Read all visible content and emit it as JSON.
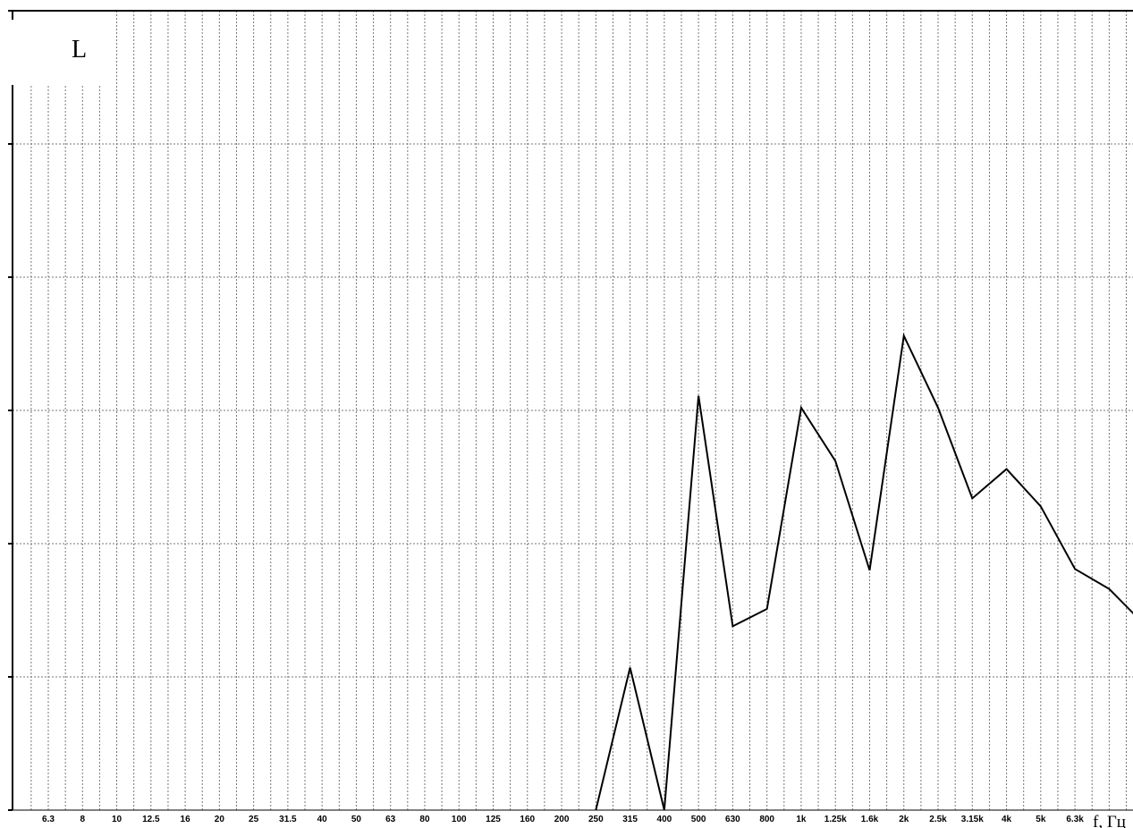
{
  "chart_data": {
    "type": "line",
    "y_label": "L",
    "x_label": "f, Гц",
    "categories": [
      "6.3",
      "8",
      "10",
      "12.5",
      "16",
      "20",
      "25",
      "31.5",
      "40",
      "50",
      "63",
      "80",
      "100",
      "125",
      "160",
      "200",
      "250",
      "315",
      "400",
      "500",
      "630",
      "800",
      "1k",
      "1.25k",
      "1.6k",
      "2k",
      "2.5k",
      "3.15k",
      "4k",
      "5k",
      "6.3k",
      null,
      null
    ],
    "series": [
      {
        "name": "L",
        "color": "#000000",
        "values": [
          null,
          null,
          null,
          null,
          null,
          null,
          null,
          null,
          null,
          null,
          null,
          null,
          null,
          null,
          null,
          null,
          0,
          10.7,
          0,
          31.1,
          13.8,
          15.1,
          30.2,
          26.2,
          18.0,
          35.6,
          30.2,
          23.4,
          25.6,
          22.8,
          18.1,
          16.6,
          14.0
        ]
      }
    ],
    "ylim": [
      0,
      60
    ],
    "yticks": [
      0,
      10,
      20,
      30,
      40,
      50,
      60
    ],
    "grid": true
  }
}
